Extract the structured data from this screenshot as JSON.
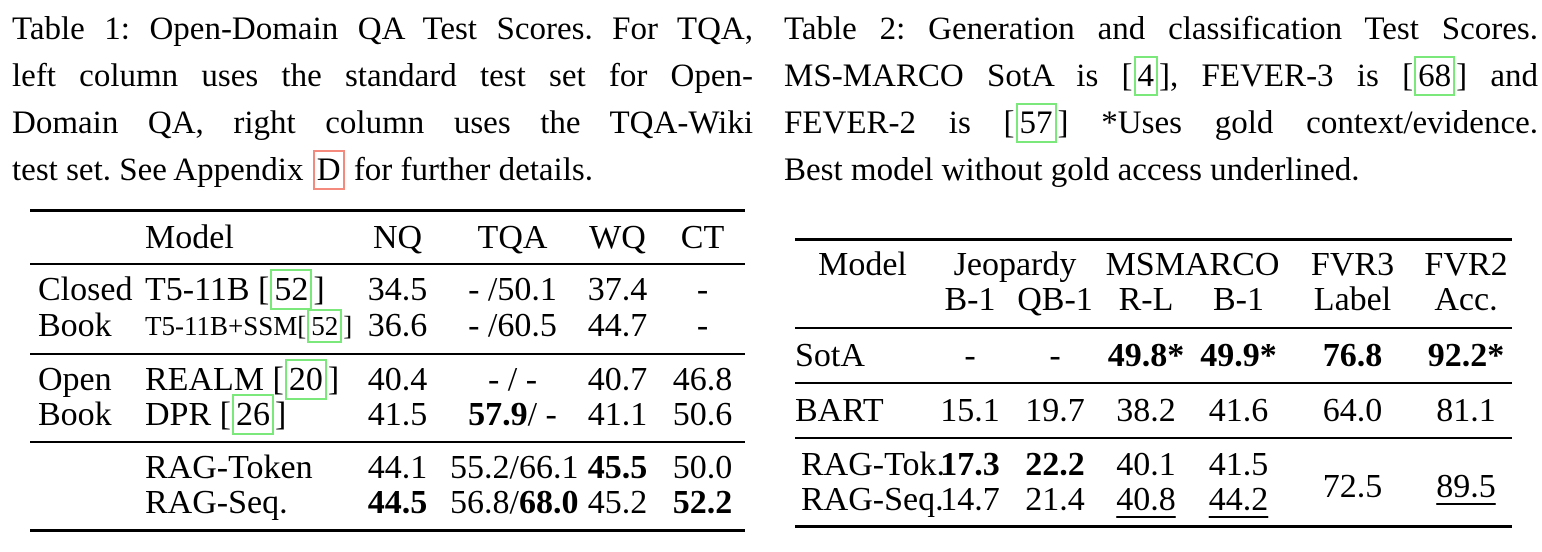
{
  "page": {
    "background": "#ffffff",
    "text_color": "#000000",
    "citation_box_color": "#7be87b",
    "appendix_box_color": "#f4897e"
  },
  "caption1": {
    "lines": [
      [
        {
          "t": "Table 1: Open-Domain QA Test Scores. For TQA,"
        }
      ],
      [
        {
          "t": "left column uses the standard test set for Open-"
        }
      ],
      [
        {
          "t": "Domain QA, right column uses the TQA-Wiki"
        }
      ],
      [
        {
          "t": "test set. See Appendix "
        },
        {
          "t": "D",
          "rbox": 1
        },
        {
          "t": " for further details."
        }
      ]
    ]
  },
  "caption2": {
    "lines": [
      [
        {
          "t": "Table 2: Generation and classification Test Scores."
        }
      ],
      [
        {
          "t": "MS-MARCO SotA is ["
        },
        {
          "t": "4",
          "cite": 1
        },
        {
          "t": "], FEVER-3 is ["
        },
        {
          "t": "68",
          "cite": 1
        },
        {
          "t": "] and"
        }
      ],
      [
        {
          "t": "FEVER-2 is ["
        },
        {
          "t": "57",
          "cite": 1
        },
        {
          "t": "] *Uses gold context/evidence."
        }
      ],
      [
        {
          "t": "Best model without gold access underlined."
        }
      ]
    ]
  },
  "table1": {
    "headers": [
      "Model",
      "NQ",
      "TQA",
      "WQ",
      "CT"
    ],
    "groups": [
      {
        "label": [
          "Closed",
          "Book"
        ],
        "rows": [
          [
            [
              {
                "t": "T5-11B ["
              },
              {
                "t": "52",
                "cite": 1
              },
              {
                "t": "]"
              }
            ],
            [
              {
                "t": "34.5"
              }
            ],
            [
              {
                "t": "- /50.1"
              }
            ],
            [
              {
                "t": "37.4"
              }
            ],
            [
              {
                "t": "-"
              }
            ]
          ],
          [
            [
              {
                "t": "T5-11B+SSM[",
                "small": 1
              },
              {
                "t": "52",
                "cite": 1,
                "small": 1
              },
              {
                "t": "]",
                "small": 1
              }
            ],
            [
              {
                "t": "36.6"
              }
            ],
            [
              {
                "t": "- /60.5"
              }
            ],
            [
              {
                "t": "44.7"
              }
            ],
            [
              {
                "t": "-"
              }
            ]
          ]
        ]
      },
      {
        "label": [
          "Open",
          "Book"
        ],
        "rows": [
          [
            [
              {
                "t": "REALM ["
              },
              {
                "t": "20",
                "cite": 1
              },
              {
                "t": "]"
              }
            ],
            [
              {
                "t": "40.4"
              }
            ],
            [
              {
                "t": "- / -"
              }
            ],
            [
              {
                "t": "40.7"
              }
            ],
            [
              {
                "t": "46.8"
              }
            ]
          ],
          [
            [
              {
                "t": "DPR ["
              },
              {
                "t": "26",
                "cite": 1
              },
              {
                "t": "]"
              }
            ],
            [
              {
                "t": "41.5"
              }
            ],
            [
              {
                "t": "57.9",
                "b": 1
              },
              {
                "t": "/ -"
              }
            ],
            [
              {
                "t": "41.1"
              }
            ],
            [
              {
                "t": "50.6"
              }
            ]
          ]
        ]
      },
      {
        "label": [
          "",
          ""
        ],
        "rows": [
          [
            [
              {
                "t": "RAG-Token"
              }
            ],
            [
              {
                "t": "44.1"
              }
            ],
            [
              {
                "t": "55.2/66.1"
              }
            ],
            [
              {
                "t": "45.5",
                "b": 1
              }
            ],
            [
              {
                "t": "50.0"
              }
            ]
          ],
          [
            [
              {
                "t": "RAG-Seq."
              }
            ],
            [
              {
                "t": "44.5",
                "b": 1
              }
            ],
            [
              {
                "t": "56.8/"
              },
              {
                "t": "68.0",
                "b": 1
              }
            ],
            [
              {
                "t": "45.2"
              }
            ],
            [
              {
                "t": "52.2",
                "b": 1
              }
            ]
          ]
        ]
      }
    ]
  },
  "table2": {
    "header_top": [
      "Model",
      "Jeopardy",
      "MSMARCO",
      "FVR3",
      "FVR2"
    ],
    "header_sub": [
      "B-1",
      "QB-1",
      "R-L",
      "B-1",
      "Label",
      "Acc."
    ],
    "rows": [
      {
        "cells": [
          [
            {
              "t": "SotA"
            }
          ],
          [
            {
              "t": "-"
            }
          ],
          [
            {
              "t": "-"
            }
          ],
          [
            {
              "t": "49.8*",
              "b": 1
            }
          ],
          [
            {
              "t": "49.9*",
              "b": 1
            }
          ],
          [
            {
              "t": "76.8",
              "b": 1
            }
          ],
          [
            {
              "t": "92.2*",
              "b": 1
            }
          ]
        ]
      },
      {
        "cells": [
          [
            {
              "t": "BART"
            }
          ],
          [
            {
              "t": "15.1"
            }
          ],
          [
            {
              "t": "19.7"
            }
          ],
          [
            {
              "t": "38.2"
            }
          ],
          [
            {
              "t": "41.6"
            }
          ],
          [
            {
              "t": "64.0"
            }
          ],
          [
            {
              "t": "81.1"
            }
          ]
        ]
      },
      {
        "cells": [
          [
            {
              "t": "RAG-Tok."
            }
          ],
          [
            {
              "t": "17.3",
              "b": 1
            }
          ],
          [
            {
              "t": "22.2",
              "b": 1
            }
          ],
          [
            {
              "t": "40.1"
            }
          ],
          [
            {
              "t": "41.5"
            }
          ],
          {
            "rs": 2,
            "segs": [
              {
                "t": "72.5"
              }
            ]
          },
          {
            "rs": 2,
            "segs": [
              {
                "t": "89.5",
                "u": 1
              }
            ]
          }
        ]
      },
      {
        "cells": [
          [
            {
              "t": "RAG-Seq."
            }
          ],
          [
            {
              "t": "14.7"
            }
          ],
          [
            {
              "t": "21.4"
            }
          ],
          [
            {
              "t": "40.8",
              "u": 1
            }
          ],
          [
            {
              "t": "44.2",
              "u": 1
            }
          ]
        ]
      }
    ]
  }
}
